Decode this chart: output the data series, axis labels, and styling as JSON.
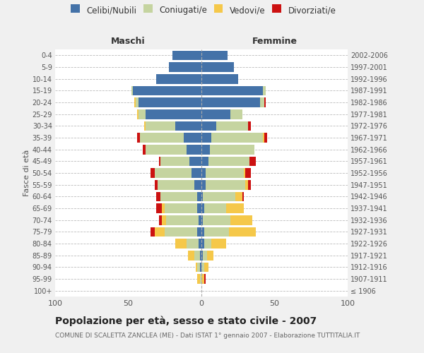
{
  "age_groups": [
    "100+",
    "95-99",
    "90-94",
    "85-89",
    "80-84",
    "75-79",
    "70-74",
    "65-69",
    "60-64",
    "55-59",
    "50-54",
    "45-49",
    "40-44",
    "35-39",
    "30-34",
    "25-29",
    "20-24",
    "15-19",
    "10-14",
    "5-9",
    "0-4"
  ],
  "birth_years": [
    "≤ 1906",
    "1907-1911",
    "1912-1916",
    "1917-1921",
    "1922-1926",
    "1927-1931",
    "1932-1936",
    "1937-1941",
    "1942-1946",
    "1947-1951",
    "1952-1956",
    "1957-1961",
    "1962-1966",
    "1967-1971",
    "1972-1976",
    "1977-1981",
    "1982-1986",
    "1987-1991",
    "1992-1996",
    "1997-2001",
    "2002-2006"
  ],
  "male_celibe": [
    0,
    0,
    1,
    1,
    2,
    3,
    2,
    3,
    3,
    5,
    7,
    8,
    10,
    12,
    18,
    38,
    43,
    47,
    31,
    22,
    20
  ],
  "male_coniugato": [
    0,
    1,
    2,
    4,
    8,
    22,
    22,
    22,
    25,
    25,
    25,
    20,
    28,
    30,
    20,
    5,
    2,
    1,
    0,
    0,
    0
  ],
  "male_vedovo": [
    0,
    2,
    1,
    4,
    8,
    7,
    3,
    2,
    0,
    0,
    0,
    0,
    0,
    0,
    1,
    1,
    1,
    0,
    0,
    0,
    0
  ],
  "male_divorziato": [
    0,
    0,
    0,
    0,
    0,
    3,
    2,
    4,
    3,
    2,
    3,
    1,
    2,
    2,
    0,
    0,
    0,
    0,
    0,
    0,
    0
  ],
  "female_celibe": [
    0,
    0,
    0,
    1,
    2,
    2,
    1,
    2,
    1,
    3,
    3,
    5,
    6,
    7,
    10,
    20,
    40,
    42,
    25,
    22,
    18
  ],
  "female_coniugato": [
    0,
    0,
    2,
    3,
    5,
    17,
    19,
    15,
    22,
    27,
    26,
    28,
    30,
    35,
    22,
    8,
    3,
    2,
    0,
    0,
    0
  ],
  "female_vedovo": [
    0,
    2,
    3,
    4,
    10,
    18,
    15,
    12,
    5,
    2,
    1,
    0,
    0,
    1,
    0,
    0,
    0,
    0,
    0,
    0,
    0
  ],
  "female_divorziato": [
    0,
    1,
    0,
    0,
    0,
    0,
    0,
    0,
    1,
    2,
    4,
    4,
    0,
    2,
    2,
    0,
    1,
    0,
    0,
    0,
    0
  ],
  "colors": {
    "celibe": "#4472a8",
    "coniugato": "#c5d4a0",
    "vedovo": "#f5c84a",
    "divorziato": "#cc1111"
  },
  "title": "Popolazione per età, sesso e stato civile - 2007",
  "subtitle": "COMUNE DI SCALETTA ZANCLEA (ME) - Dati ISTAT 1° gennaio 2007 - Elaborazione TUTTITALIA.IT",
  "xlabel_left": "Maschi",
  "xlabel_right": "Femmine",
  "ylabel_left": "Fasce di età",
  "xlim": 100,
  "bg_color": "#f0f0f0",
  "plot_bg": "#ffffff",
  "legend_labels": [
    "Celibi/Nubili",
    "Coniugati/e",
    "Vedovi/e",
    "Divorziati/e"
  ]
}
